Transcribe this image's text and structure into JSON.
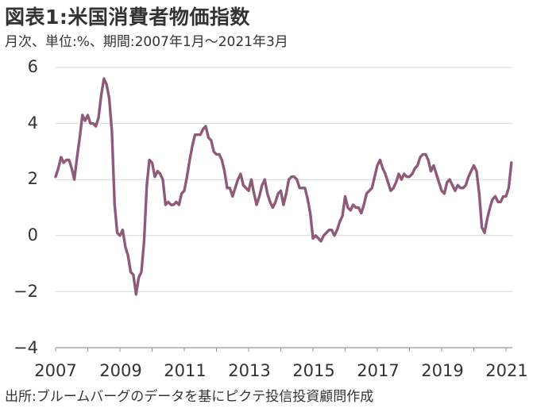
{
  "title": "図表1:米国消費者物価指数",
  "subtitle": "月次、単位:%、期間:2007年1月～2021年3月",
  "source": "出所:ブルームバーグのデータを基にピクテ投信投資顧問作成",
  "colors": {
    "line": "#8e5a78",
    "grid": "#d9d9d9",
    "axis": "#999999"
  },
  "chart_data": {
    "type": "line",
    "title": "米国消費者物価指数",
    "xlabel": "",
    "ylabel": "",
    "ylim": [
      -4,
      6
    ],
    "xlim": [
      "2007-01",
      "2021-03"
    ],
    "y_ticks": [
      "6",
      "4",
      "2",
      "0",
      "−2",
      "−4"
    ],
    "x_ticks": [
      "2007",
      "2009",
      "2011",
      "2013",
      "2015",
      "2017",
      "2019",
      "2021"
    ],
    "grid": "horizontal",
    "x_start": "2007-01",
    "series": [
      {
        "name": "",
        "values": [
          2.1,
          2.4,
          2.8,
          2.6,
          2.7,
          2.7,
          2.4,
          2.0,
          2.8,
          3.5,
          4.3,
          4.1,
          4.3,
          4.0,
          4.0,
          3.9,
          4.2,
          5.0,
          5.6,
          5.4,
          4.9,
          3.7,
          1.1,
          0.1,
          0.0,
          0.2,
          -0.4,
          -0.7,
          -1.3,
          -1.4,
          -2.1,
          -1.5,
          -1.3,
          -0.2,
          1.8,
          2.7,
          2.6,
          2.1,
          2.3,
          2.2,
          2.0,
          1.1,
          1.2,
          1.1,
          1.1,
          1.2,
          1.1,
          1.5,
          1.6,
          2.1,
          2.7,
          3.2,
          3.6,
          3.6,
          3.6,
          3.8,
          3.9,
          3.5,
          3.4,
          3.0,
          2.9,
          2.9,
          2.7,
          2.3,
          1.7,
          1.7,
          1.4,
          1.7,
          2.0,
          2.2,
          1.8,
          1.7,
          1.6,
          2.0,
          1.5,
          1.1,
          1.4,
          1.8,
          2.0,
          1.5,
          1.2,
          1.0,
          1.2,
          1.5,
          1.6,
          1.1,
          1.5,
          2.0,
          2.1,
          2.1,
          2.0,
          1.7,
          1.7,
          1.7,
          1.3,
          0.8,
          -0.1,
          0.0,
          -0.1,
          -0.2,
          0.0,
          0.1,
          0.2,
          0.2,
          0.0,
          0.2,
          0.5,
          0.7,
          1.4,
          1.0,
          0.9,
          1.1,
          1.0,
          1.0,
          0.8,
          1.1,
          1.5,
          1.6,
          1.7,
          2.1,
          2.5,
          2.7,
          2.4,
          2.2,
          1.9,
          1.6,
          1.7,
          1.9,
          2.2,
          2.0,
          2.2,
          2.1,
          2.1,
          2.2,
          2.4,
          2.5,
          2.8,
          2.9,
          2.9,
          2.7,
          2.3,
          2.5,
          2.2,
          1.9,
          1.6,
          1.5,
          1.9,
          2.0,
          1.8,
          1.6,
          1.8,
          1.7,
          1.7,
          1.8,
          2.1,
          2.3,
          2.5,
          2.3,
          1.5,
          0.3,
          0.1,
          0.6,
          1.0,
          1.3,
          1.4,
          1.2,
          1.2,
          1.4,
          1.4,
          1.7,
          2.6
        ]
      }
    ]
  }
}
